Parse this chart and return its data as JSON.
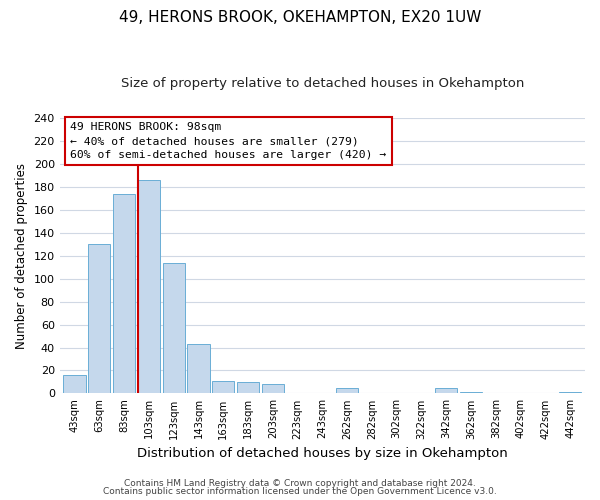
{
  "title": "49, HERONS BROOK, OKEHAMPTON, EX20 1UW",
  "subtitle": "Size of property relative to detached houses in Okehampton",
  "xlabel": "Distribution of detached houses by size in Okehampton",
  "ylabel": "Number of detached properties",
  "bar_labels": [
    "43sqm",
    "63sqm",
    "83sqm",
    "103sqm",
    "123sqm",
    "143sqm",
    "163sqm",
    "183sqm",
    "203sqm",
    "223sqm",
    "243sqm",
    "262sqm",
    "282sqm",
    "302sqm",
    "322sqm",
    "342sqm",
    "362sqm",
    "382sqm",
    "402sqm",
    "422sqm",
    "442sqm"
  ],
  "bar_values": [
    16,
    130,
    174,
    186,
    114,
    43,
    11,
    10,
    8,
    0,
    0,
    5,
    0,
    0,
    0,
    5,
    1,
    0,
    0,
    0,
    1
  ],
  "bar_color": "#c5d8ec",
  "bar_edge_color": "#6aaed6",
  "vline_color": "#cc0000",
  "ylim": [
    0,
    240
  ],
  "yticks": [
    0,
    20,
    40,
    60,
    80,
    100,
    120,
    140,
    160,
    180,
    200,
    220,
    240
  ],
  "annotation_title": "49 HERONS BROOK: 98sqm",
  "annotation_line1": "← 40% of detached houses are smaller (279)",
  "annotation_line2": "60% of semi-detached houses are larger (420) →",
  "footer1": "Contains HM Land Registry data © Crown copyright and database right 2024.",
  "footer2": "Contains public sector information licensed under the Open Government Licence v3.0.",
  "background_color": "#ffffff",
  "plot_background": "#ffffff",
  "grid_color": "#d0d8e4",
  "title_fontsize": 11,
  "subtitle_fontsize": 9.5,
  "ylabel_fontsize": 8.5,
  "xlabel_fontsize": 9.5
}
